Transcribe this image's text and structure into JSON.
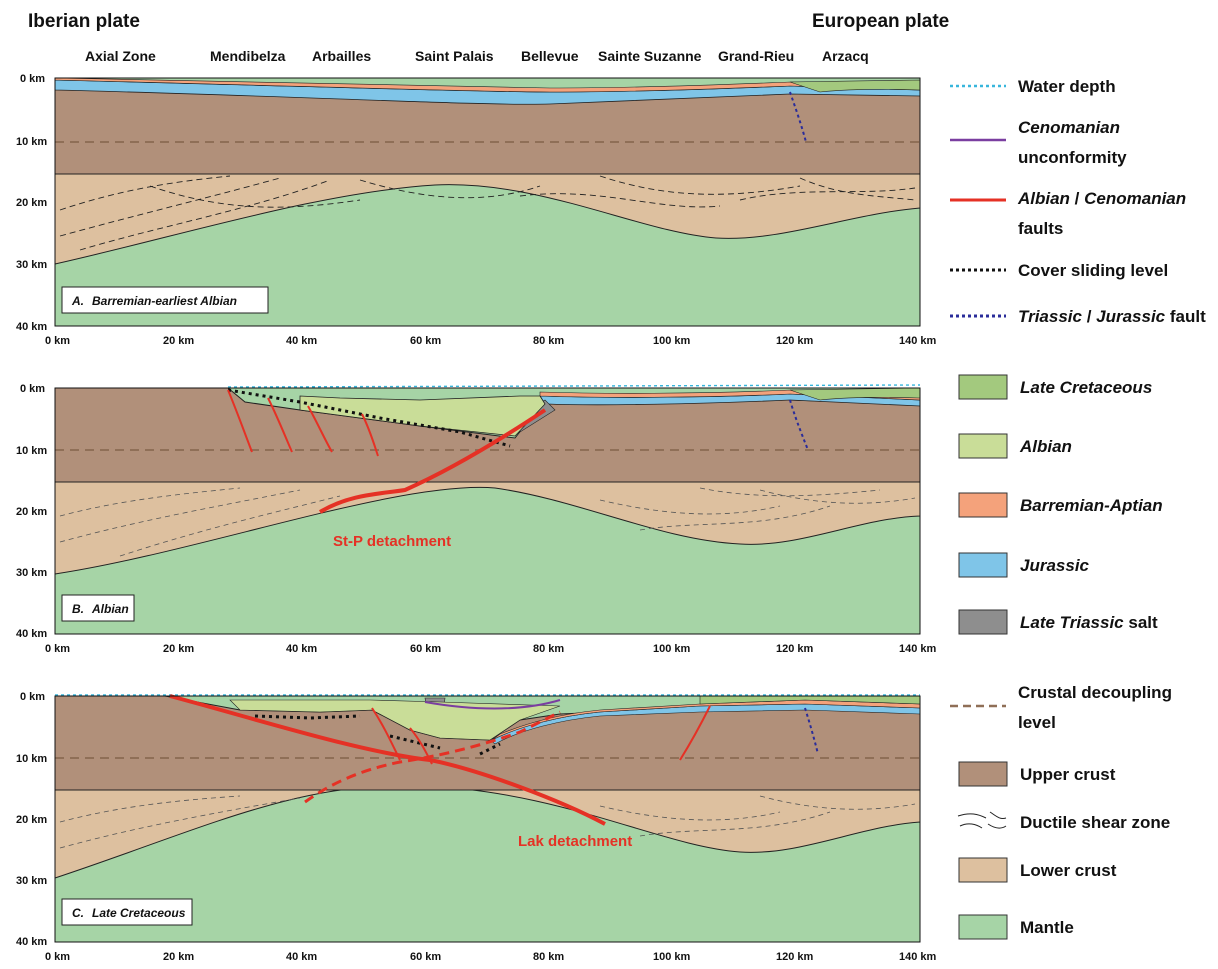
{
  "header": {
    "left_plate": "Iberian plate",
    "right_plate": "European plate",
    "locations": [
      "Axial Zone",
      "Mendibelza",
      "Arbailles",
      "Saint Palais",
      "Bellevue",
      "Sainte Suzanne",
      "Grand-Rieu",
      "Arzacq"
    ]
  },
  "axes": {
    "depth_ticks": [
      "0 km",
      "10 km",
      "20 km",
      "30 km",
      "40 km"
    ],
    "distance_ticks": [
      "0 km",
      "20 km",
      "40 km",
      "60 km",
      "80 km",
      "100 km",
      "120 km",
      "140 km"
    ]
  },
  "panels": [
    {
      "letter": "A.",
      "age": "Barremian-earliest Albian"
    },
    {
      "letter": "B.",
      "age": "Albian",
      "detachment_label": "St-P detachment"
    },
    {
      "letter": "C.",
      "age": "Late Cretaceous",
      "detachment_label": "Lak detachment"
    }
  ],
  "legend": {
    "water_depth": "Water depth",
    "cenomanian_a": "Cenomanian",
    "cenomanian_b": "unconformity",
    "faults_a": "Albian",
    "faults_sep": " / ",
    "faults_b": "Cenomanian",
    "faults_c": "faults",
    "cover_sliding": "Cover sliding level",
    "trijur_a": "Triassic",
    "trijur_sep": " / ",
    "trijur_b": "Jurassic",
    "trijur_c": " fault",
    "late_cretaceous": "Late Cretaceous",
    "albian": "Albian",
    "barremian_aptian": "Barremian-Aptian",
    "jurassic": "Jurassic",
    "late_triassic": "Late Triassic",
    "salt": " salt",
    "crustal_a": "Crustal decoupling",
    "crustal_b": "level",
    "upper_crust": "Upper crust",
    "ductile": "Ductile shear zone",
    "lower_crust": "Lower crust",
    "mantle": "Mantle"
  },
  "colors": {
    "mantle": "#a6d4a6",
    "lower_crust": "#ddc09f",
    "upper_crust": "#b1907a",
    "late_triassic_salt": "#8e8e8e",
    "jurassic": "#7fc5e8",
    "barremian_aptian": "#f4a27b",
    "albian": "#c9dd98",
    "late_cretaceous": "#a3c97e",
    "fault_red": "#e53125",
    "water_blue": "#38b6dc",
    "cenomanian_purple": "#7a3ea0",
    "trijur_navy": "#2a2c9a",
    "decoupling_brown": "#8f6f57"
  }
}
